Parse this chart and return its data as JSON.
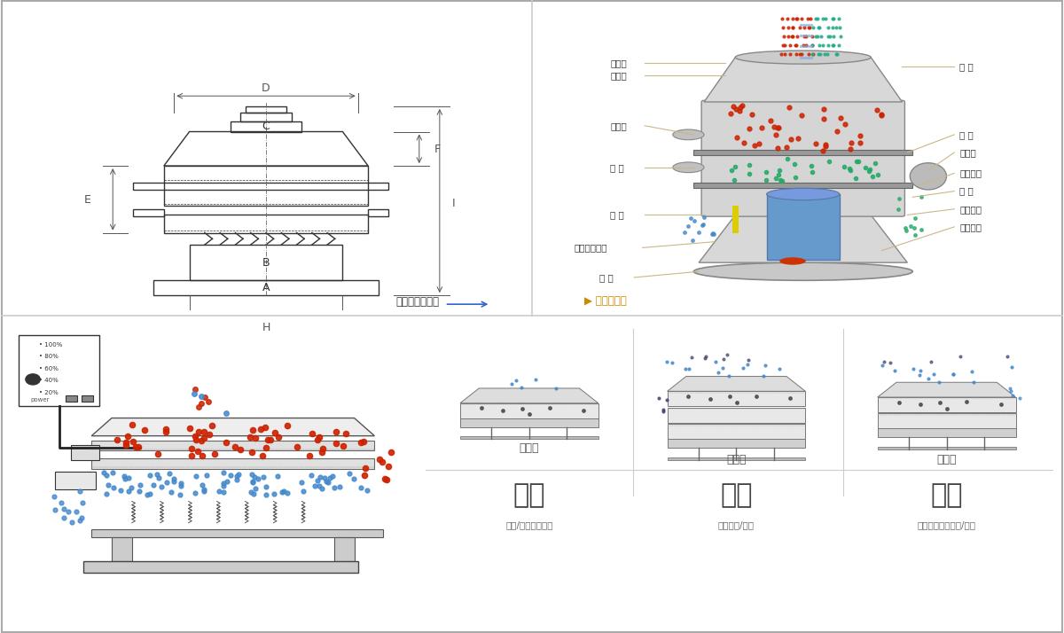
{
  "bg_color": "#ffffff",
  "border_color": "#cccccc",
  "title_top_left": "外形尺寸示意图",
  "title_top_right": "结构示意图",
  "bottom_left_title": "单层式",
  "bottom_mid_title": "三层式",
  "bottom_right_title": "双层式",
  "bottom_labels": [
    "分级",
    "过滤",
    "除杂"
  ],
  "bottom_sublabels": [
    "颗粒/粉末准确分级",
    "去除异物/结块",
    "去除液体中的颗粒/异物"
  ],
  "divider_color": "#cccccc",
  "label_color": "#333333",
  "line_color": "#b8a878",
  "red_color": "#cc2200",
  "blue_color": "#4488cc",
  "green_color": "#22aa88"
}
